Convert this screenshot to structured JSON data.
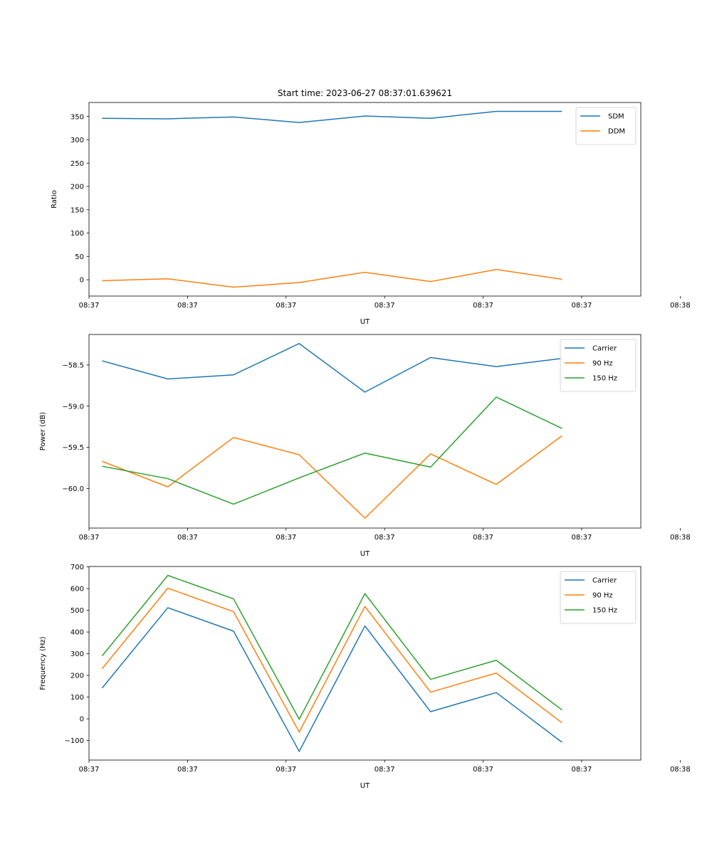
{
  "figure": {
    "title": "Start time: 2023-06-27 08:37:01.639621"
  },
  "colors": {
    "blue": "#1f77b4",
    "orange": "#ff7f0e",
    "green": "#2ca02c"
  },
  "chart_data": [
    {
      "type": "line",
      "name": "ratio-panel",
      "title": "Start time: 2023-06-27 08:37:01.639621",
      "xlabel": "UT",
      "ylabel": "Ratio",
      "x": [
        1,
        2,
        3,
        4,
        5,
        6,
        7,
        8
      ],
      "xlim": [
        0.8,
        9.2
      ],
      "x_ticks": [
        {
          "value": 0.8,
          "label": "08:37"
        },
        {
          "value": 2.3,
          "label": "08:37"
        },
        {
          "value": 3.8,
          "label": "08:37"
        },
        {
          "value": 5.3,
          "label": "08:37"
        },
        {
          "value": 6.8,
          "label": "08:37"
        },
        {
          "value": 8.3,
          "label": "08:37"
        },
        {
          "value": 9.8,
          "label": "08:38"
        }
      ],
      "ylim": [
        -35,
        380
      ],
      "y_ticks": [
        0,
        50,
        100,
        150,
        200,
        250,
        300,
        350
      ],
      "legend": "top-right",
      "grid": false,
      "series": [
        {
          "name": "SDM",
          "color": "#1f77b4",
          "values": [
            346,
            345,
            349,
            337,
            351,
            346,
            361,
            361
          ]
        },
        {
          "name": "DDM",
          "color": "#ff7f0e",
          "values": [
            -2,
            2,
            -16,
            -6,
            16,
            -4,
            22,
            1
          ]
        }
      ]
    },
    {
      "type": "line",
      "name": "power-panel",
      "title": "",
      "xlabel": "UT",
      "ylabel": "Power (dB)",
      "x": [
        1,
        2,
        3,
        4,
        5,
        6,
        7,
        8
      ],
      "xlim": [
        0.8,
        9.2
      ],
      "x_ticks": [
        {
          "value": 0.8,
          "label": "08:37"
        },
        {
          "value": 2.3,
          "label": "08:37"
        },
        {
          "value": 3.8,
          "label": "08:37"
        },
        {
          "value": 5.3,
          "label": "08:37"
        },
        {
          "value": 6.8,
          "label": "08:37"
        },
        {
          "value": 8.3,
          "label": "08:37"
        },
        {
          "value": 9.8,
          "label": "08:38"
        }
      ],
      "ylim": [
        -60.48,
        -58.13
      ],
      "y_ticks": [
        -60.0,
        -59.5,
        -59.0,
        -58.5
      ],
      "y_tick_labels": [
        "−60.0",
        "−59.5",
        "−59.0",
        "−58.5"
      ],
      "legend": "top-right",
      "grid": false,
      "series": [
        {
          "name": "Carrier",
          "color": "#1f77b4",
          "values": [
            -58.45,
            -58.67,
            -58.62,
            -58.24,
            -58.83,
            -58.41,
            -58.52,
            -58.42
          ]
        },
        {
          "name": "90 Hz",
          "color": "#ff7f0e",
          "values": [
            -59.67,
            -59.98,
            -59.38,
            -59.59,
            -60.36,
            -59.58,
            -59.95,
            -59.36
          ]
        },
        {
          "name": "150 Hz",
          "color": "#2ca02c",
          "values": [
            -59.73,
            -59.88,
            -60.19,
            -59.87,
            -59.57,
            -59.74,
            -58.89,
            -59.27
          ]
        }
      ]
    },
    {
      "type": "line",
      "name": "frequency-panel",
      "title": "",
      "xlabel": "UT",
      "ylabel": "Frequency (Hz)",
      "x": [
        1,
        2,
        3,
        4,
        5,
        6,
        7,
        8
      ],
      "xlim": [
        0.8,
        9.2
      ],
      "x_ticks": [
        {
          "value": 0.8,
          "label": "08:37"
        },
        {
          "value": 2.3,
          "label": "08:37"
        },
        {
          "value": 3.8,
          "label": "08:37"
        },
        {
          "value": 5.3,
          "label": "08:37"
        },
        {
          "value": 6.8,
          "label": "08:37"
        },
        {
          "value": 8.3,
          "label": "08:37"
        },
        {
          "value": 9.8,
          "label": "08:38"
        }
      ],
      "ylim": [
        -190,
        702
      ],
      "y_ticks": [
        -100,
        0,
        100,
        200,
        300,
        400,
        500,
        600,
        700
      ],
      "y_tick_labels": [
        "−100",
        "0",
        "100",
        "200",
        "300",
        "400",
        "500",
        "600",
        "700"
      ],
      "legend": "top-right",
      "grid": false,
      "series": [
        {
          "name": "Carrier",
          "color": "#1f77b4",
          "values": [
            142,
            512,
            404,
            -150,
            428,
            33,
            121,
            -108
          ]
        },
        {
          "name": "90 Hz",
          "color": "#ff7f0e",
          "values": [
            231,
            602,
            494,
            -61,
            518,
            123,
            211,
            -18
          ]
        },
        {
          "name": "150 Hz",
          "color": "#2ca02c",
          "values": [
            290,
            661,
            553,
            -2,
            577,
            182,
            270,
            41
          ]
        }
      ]
    }
  ]
}
